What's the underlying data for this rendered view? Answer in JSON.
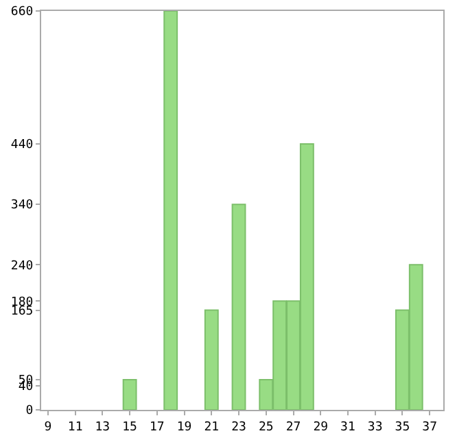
{
  "chart_data": {
    "type": "bar",
    "x": [
      15,
      18,
      21,
      23,
      25,
      26,
      27,
      28,
      35,
      36
    ],
    "values": [
      50,
      660,
      165,
      340,
      50,
      180,
      180,
      440,
      165,
      240
    ],
    "color": "#98dc84",
    "xlim": [
      8.5,
      38
    ],
    "xticks": [
      9,
      11,
      13,
      15,
      17,
      19,
      21,
      23,
      25,
      27,
      29,
      31,
      33,
      35,
      37
    ],
    "ylim": [
      0,
      660
    ],
    "yticks": [
      0,
      40,
      50,
      165,
      180,
      240,
      340,
      440,
      660
    ],
    "grid": false
  }
}
